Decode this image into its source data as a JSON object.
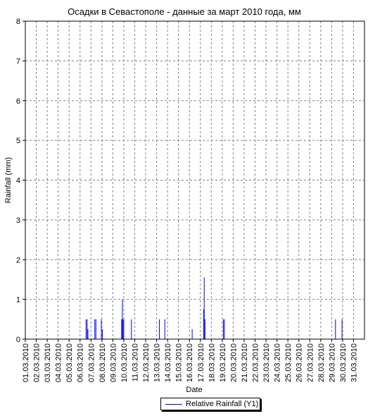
{
  "chart_data": {
    "type": "bar",
    "title": "Осадки в Севастополе - данные за март 2010 года, мм",
    "xlabel": "Date",
    "ylabel": "Rainfall (mm)",
    "ylim": [
      0,
      8
    ],
    "yticks": [
      "0",
      "1",
      "2",
      "3",
      "4",
      "5",
      "6",
      "7",
      "8"
    ],
    "xlim": [
      1,
      32
    ],
    "xticks": [
      "01.03.2010",
      "02.03.2010",
      "03.03.2010",
      "04.03.2010",
      "05.03.2010",
      "06.03.2010",
      "07.03.2010",
      "08.03.2010",
      "09.03.2010",
      "10.03.2010",
      "11.03.2010",
      "12.03.2010",
      "13.03.2010",
      "14.03.2010",
      "15.03.2010",
      "16.03.2010",
      "17.03.2010",
      "18.03.2010",
      "19.03.2010",
      "20.03.2010",
      "21.03.2010",
      "22.03.2010",
      "23.03.2010",
      "24.03.2010",
      "25.03.2010",
      "26.03.2010",
      "27.03.2010",
      "28.03.2010",
      "29.03.2010",
      "30.03.2010",
      "31.03.2010"
    ],
    "grid": true,
    "legend_position": "bottom-center",
    "series": [
      {
        "name": "Relative Rainfall (Y1)",
        "color": "#0000ff",
        "points": [
          {
            "x": 6.55,
            "y": 0.5
          },
          {
            "x": 6.65,
            "y": 0.5
          },
          {
            "x": 6.72,
            "y": 0.25
          },
          {
            "x": 7.35,
            "y": 0.5
          },
          {
            "x": 7.45,
            "y": 0.5
          },
          {
            "x": 7.95,
            "y": 0.5
          },
          {
            "x": 8.05,
            "y": 0.25
          },
          {
            "x": 9.8,
            "y": 0.5
          },
          {
            "x": 9.87,
            "y": 1.0
          },
          {
            "x": 9.92,
            "y": 0.5
          },
          {
            "x": 10.0,
            "y": 0.5
          },
          {
            "x": 10.7,
            "y": 0.5
          },
          {
            "x": 13.25,
            "y": 0.5
          },
          {
            "x": 13.75,
            "y": 0.5
          },
          {
            "x": 16.25,
            "y": 0.25
          },
          {
            "x": 17.3,
            "y": 0.75
          },
          {
            "x": 17.35,
            "y": 1.55
          },
          {
            "x": 17.42,
            "y": 0.5
          },
          {
            "x": 19.1,
            "y": 0.5
          },
          {
            "x": 19.2,
            "y": 0.5
          },
          {
            "x": 29.35,
            "y": 0.5
          },
          {
            "x": 29.95,
            "y": 0.5
          }
        ]
      }
    ]
  }
}
